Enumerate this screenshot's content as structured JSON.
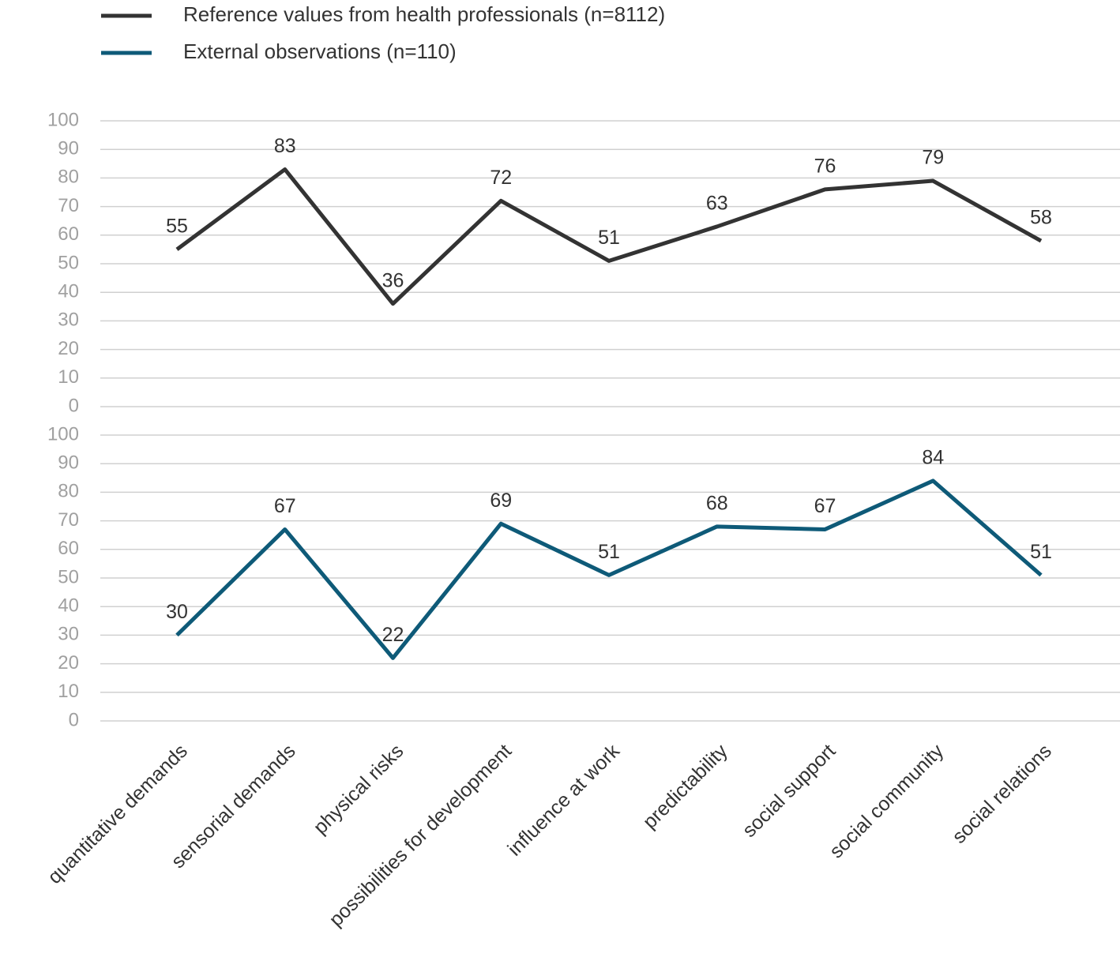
{
  "chart_data": {
    "type": "line",
    "categories": [
      "quantitative demands",
      "sensorial demands",
      "physical risks",
      "possibilities for development",
      "influence at work",
      "predictability",
      "social support",
      "social community",
      "social relations"
    ],
    "series": [
      {
        "name": "Reference values from health professionals (n=8112)",
        "color": "#333333",
        "values": [
          55,
          83,
          36,
          72,
          51,
          63,
          76,
          79,
          58
        ]
      },
      {
        "name": "External observations (n=110)",
        "color": "#0e5a78",
        "values": [
          30,
          67,
          22,
          69,
          51,
          68,
          67,
          84,
          51
        ]
      }
    ],
    "panels": "stacked",
    "ylim": [
      0,
      100
    ],
    "yticks": [
      0,
      10,
      20,
      30,
      40,
      50,
      60,
      70,
      80,
      90,
      100
    ],
    "grid": true,
    "legend": "top-left",
    "data_labels": true
  }
}
